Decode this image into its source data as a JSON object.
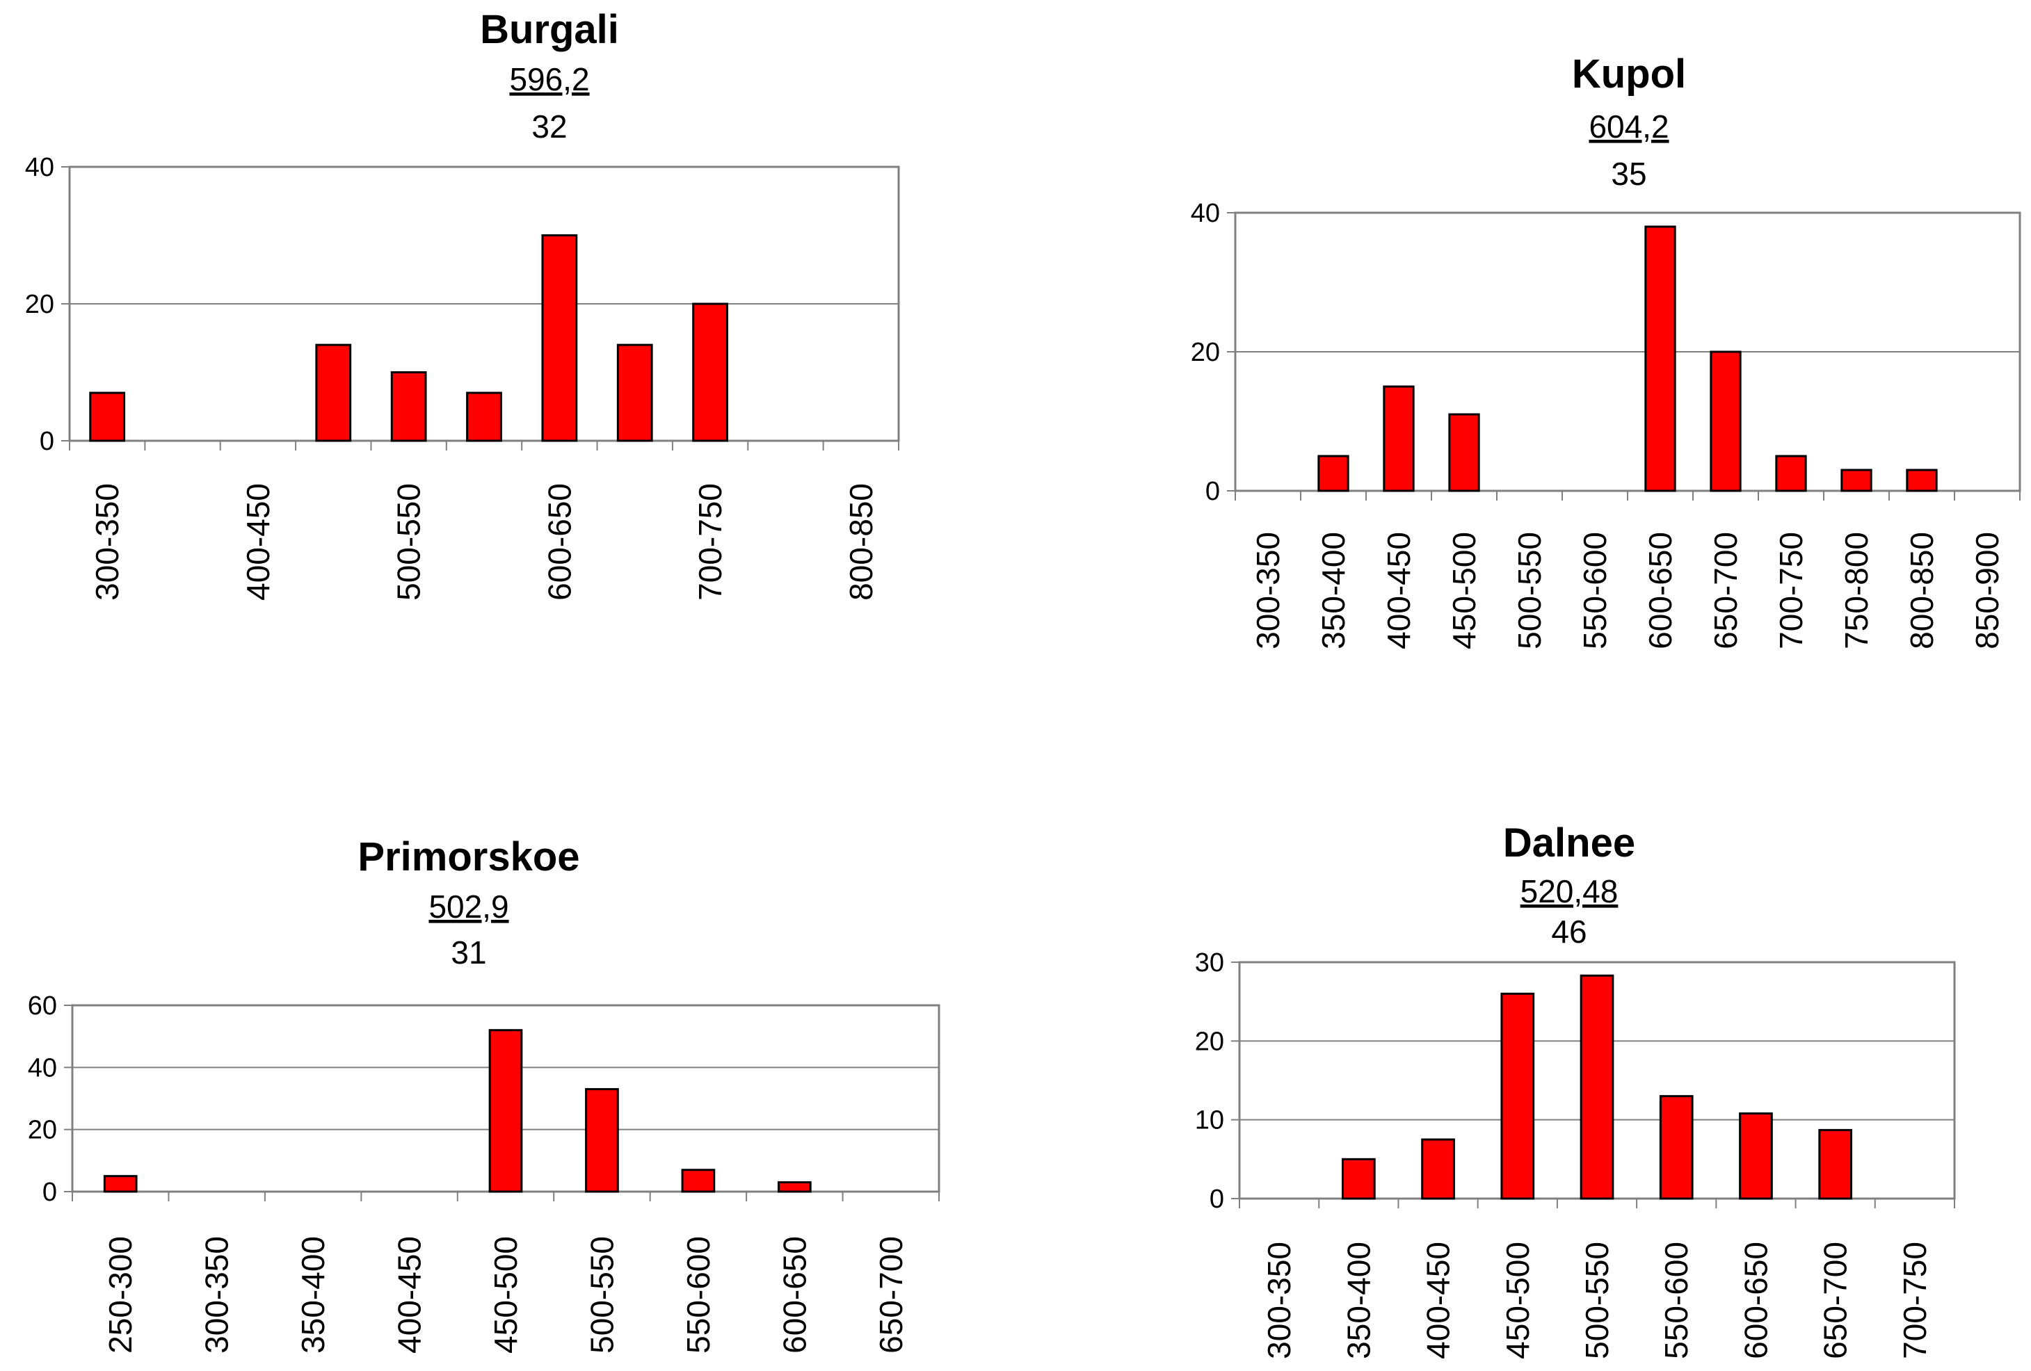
{
  "colors": {
    "bar": "#ff0000",
    "bar_stroke": "#000000",
    "grid": "#808080",
    "frame": "#808080"
  },
  "chart_data": [
    {
      "name": "burgali",
      "type": "bar",
      "title": "Burgali",
      "mean": "596,2",
      "n": "32",
      "categories": [
        "300-350",
        "",
        "400-450",
        "",
        "500-550",
        "",
        "600-650",
        "",
        "700-750",
        "",
        "800-850"
      ],
      "values": [
        7,
        0,
        0,
        14,
        10,
        7,
        30,
        14,
        20,
        0,
        0
      ],
      "ylim": [
        0,
        40
      ],
      "yticks": [
        0,
        20,
        40
      ],
      "grid": true
    },
    {
      "name": "kupol",
      "type": "bar",
      "title": "Kupol",
      "mean": "604,2",
      "n": "35",
      "categories": [
        "300-350",
        "350-400",
        "400-450",
        "450-500",
        "500-550",
        "550-600",
        "600-650",
        "650-700",
        "700-750",
        "750-800",
        "800-850",
        "850-900"
      ],
      "values": [
        0,
        5,
        15,
        11,
        0,
        0,
        38,
        20,
        5,
        3,
        3,
        0
      ],
      "ylim": [
        0,
        40
      ],
      "yticks": [
        0,
        20,
        40
      ],
      "grid": true
    },
    {
      "name": "primorskoe",
      "type": "bar",
      "title": "Primorskoe",
      "mean": "502,9",
      "n": "31",
      "categories": [
        "250-300",
        "300-350",
        "350-400",
        "400-450",
        "450-500",
        "500-550",
        "550-600",
        "600-650",
        "650-700"
      ],
      "values": [
        5,
        0,
        0,
        0,
        52,
        33,
        7,
        3,
        0
      ],
      "ylim": [
        0,
        60
      ],
      "yticks": [
        0,
        20,
        40,
        60
      ],
      "grid": true
    },
    {
      "name": "dalnee",
      "type": "bar",
      "title": "Dalnee",
      "mean": "520,48",
      "n": "46",
      "categories": [
        "300-350",
        "350-400",
        "400-450",
        "450-500",
        "500-550",
        "550-600",
        "600-650",
        "650-700",
        "700-750"
      ],
      "values": [
        0,
        5,
        7.5,
        26,
        28.3,
        13,
        10.8,
        8.7,
        0
      ],
      "ylim": [
        0,
        30
      ],
      "yticks": [
        0,
        10,
        20,
        30
      ],
      "grid": true
    }
  ]
}
